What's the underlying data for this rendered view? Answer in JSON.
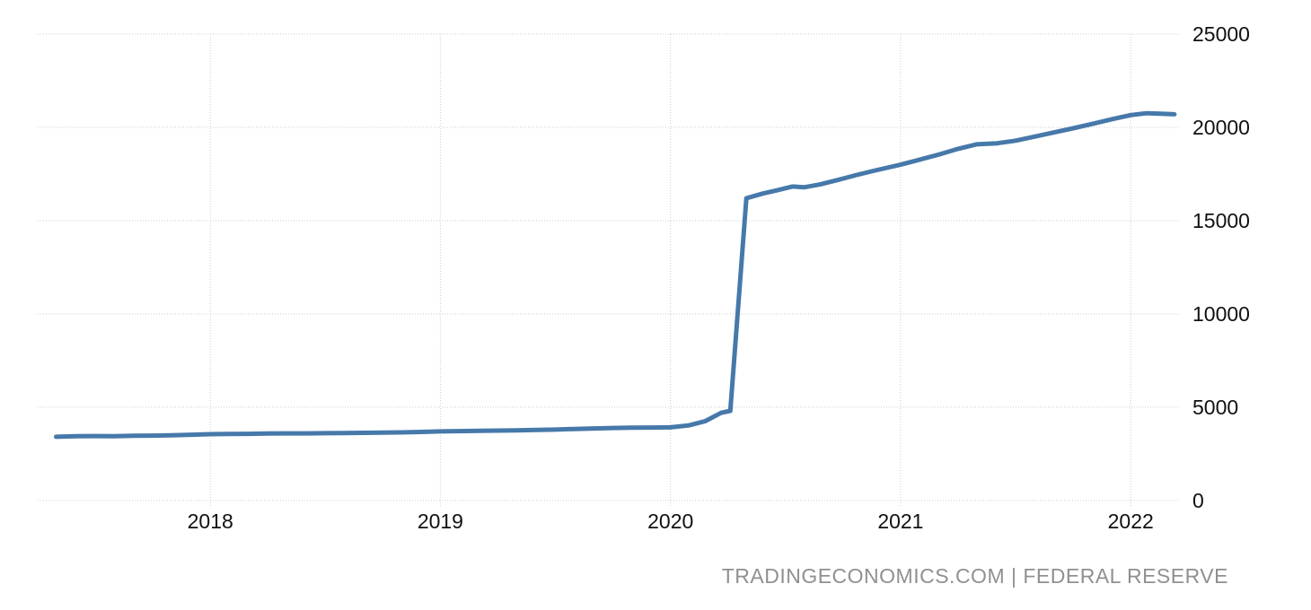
{
  "page": {
    "background": "#ffffff"
  },
  "chart_data": {
    "type": "line",
    "title": "",
    "xlabel": "",
    "ylabel": "",
    "xlim": [
      2017.25,
      2022.21
    ],
    "ylim": [
      0,
      25000
    ],
    "x_ticks": [
      "2018",
      "2019",
      "2020",
      "2021",
      "2022"
    ],
    "x_tick_values": [
      2018,
      2019,
      2020,
      2021,
      2022
    ],
    "y_ticks": [
      "0",
      "5000",
      "10000",
      "15000",
      "20000",
      "25000"
    ],
    "y_tick_values": [
      0,
      5000,
      10000,
      15000,
      20000,
      25000
    ],
    "grid": "dotted",
    "grid_color": "#cccccc",
    "tick_label_color": "#111111",
    "legend": "none",
    "series": [
      {
        "name": "",
        "color": "#4679aa",
        "stroke_width": 5,
        "points": [
          [
            2017.33,
            3420
          ],
          [
            2017.42,
            3445
          ],
          [
            2017.5,
            3455
          ],
          [
            2017.58,
            3450
          ],
          [
            2017.67,
            3470
          ],
          [
            2017.75,
            3480
          ],
          [
            2017.83,
            3495
          ],
          [
            2017.92,
            3530
          ],
          [
            2018.0,
            3560
          ],
          [
            2018.08,
            3570
          ],
          [
            2018.17,
            3575
          ],
          [
            2018.25,
            3590
          ],
          [
            2018.33,
            3600
          ],
          [
            2018.42,
            3600
          ],
          [
            2018.5,
            3610
          ],
          [
            2018.58,
            3615
          ],
          [
            2018.67,
            3630
          ],
          [
            2018.75,
            3645
          ],
          [
            2018.83,
            3655
          ],
          [
            2018.92,
            3680
          ],
          [
            2019.0,
            3705
          ],
          [
            2019.08,
            3720
          ],
          [
            2019.17,
            3735
          ],
          [
            2019.25,
            3750
          ],
          [
            2019.33,
            3765
          ],
          [
            2019.42,
            3785
          ],
          [
            2019.5,
            3805
          ],
          [
            2019.58,
            3835
          ],
          [
            2019.67,
            3865
          ],
          [
            2019.75,
            3890
          ],
          [
            2019.83,
            3905
          ],
          [
            2019.92,
            3915
          ],
          [
            2020.0,
            3925
          ],
          [
            2020.08,
            4030
          ],
          [
            2020.15,
            4250
          ],
          [
            2020.22,
            4700
          ],
          [
            2020.26,
            4810
          ],
          [
            2020.33,
            16200
          ],
          [
            2020.4,
            16450
          ],
          [
            2020.46,
            16620
          ],
          [
            2020.53,
            16830
          ],
          [
            2020.58,
            16790
          ],
          [
            2020.65,
            16940
          ],
          [
            2020.73,
            17190
          ],
          [
            2020.81,
            17450
          ],
          [
            2020.89,
            17690
          ],
          [
            2021.0,
            18000
          ],
          [
            2021.08,
            18260
          ],
          [
            2021.17,
            18560
          ],
          [
            2021.25,
            18850
          ],
          [
            2021.33,
            19090
          ],
          [
            2021.42,
            19150
          ],
          [
            2021.5,
            19290
          ],
          [
            2021.58,
            19500
          ],
          [
            2021.67,
            19740
          ],
          [
            2021.75,
            19950
          ],
          [
            2021.83,
            20180
          ],
          [
            2021.92,
            20440
          ],
          [
            2022.0,
            20660
          ],
          [
            2022.07,
            20760
          ],
          [
            2022.13,
            20730
          ],
          [
            2022.19,
            20700
          ]
        ]
      }
    ],
    "source_label": "TRADINGECONOMICS.COM | FEDERAL RESERVE",
    "source_color": "#909090"
  }
}
